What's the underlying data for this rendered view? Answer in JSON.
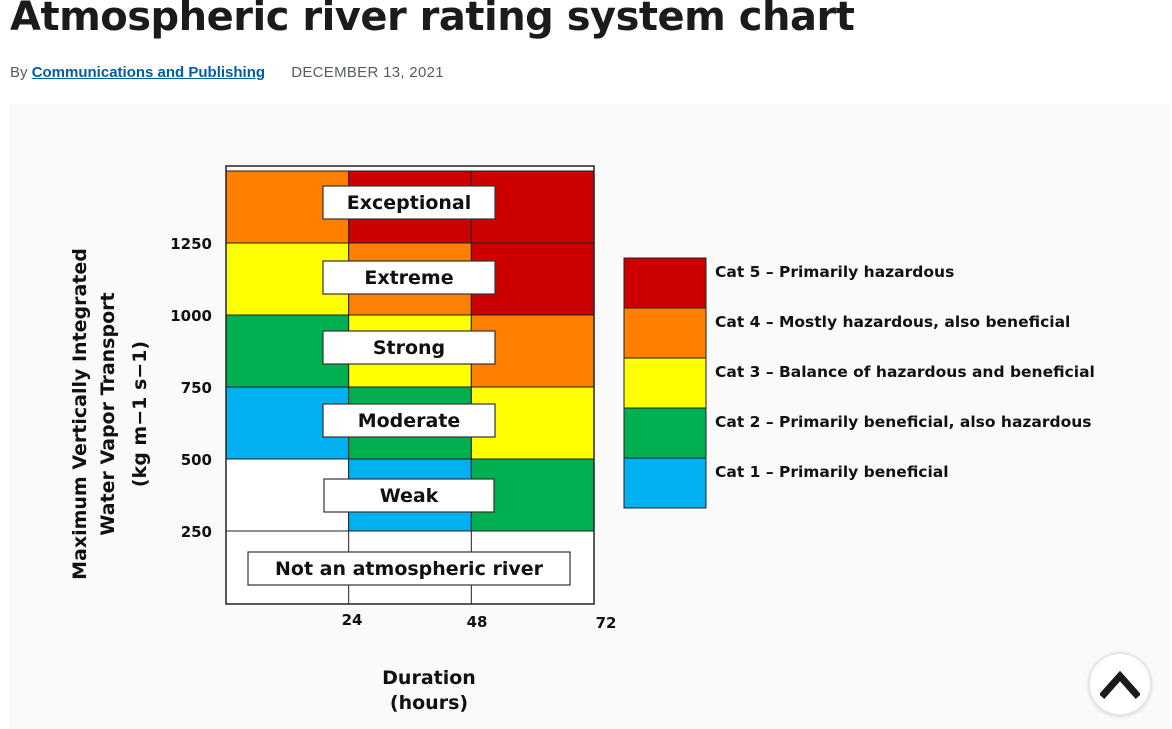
{
  "article": {
    "title": "Atmospheric river rating system chart",
    "byline_prefix": "By",
    "author": "Communications and Publishing",
    "date": "DECEMBER 13, 2021"
  },
  "chart_data": {
    "type": "heatmap",
    "ylabel_lines": [
      "Maximum Vertically Integrated",
      "Water Vapor Transport",
      "(kg m−1 s−1)"
    ],
    "xlabel_lines": [
      "Duration",
      "(hours)"
    ],
    "x_ticks": [
      "24",
      "48",
      "72"
    ],
    "y_ticks": [
      "250",
      "500",
      "750",
      "1000",
      "1250"
    ],
    "x_bins": [
      [
        0,
        24
      ],
      [
        24,
        48
      ],
      [
        48,
        72
      ]
    ],
    "y_bins": [
      [
        250,
        500
      ],
      [
        500,
        750
      ],
      [
        750,
        1000
      ],
      [
        1000,
        1250
      ],
      [
        1250,
        1500
      ]
    ],
    "cells": [
      [
        0,
        1,
        2
      ],
      [
        1,
        2,
        3
      ],
      [
        2,
        3,
        4
      ],
      [
        3,
        4,
        5
      ],
      [
        4,
        5,
        5
      ]
    ],
    "category_colors": {
      "0": "#ffffff",
      "1": "#00b0f0",
      "2": "#00b050",
      "3": "#ffff00",
      "4": "#ff7f00",
      "5": "#cc0000"
    },
    "band_labels": [
      "Not an atmospheric river",
      "Weak",
      "Moderate",
      "Strong",
      "Extreme",
      "Exceptional"
    ],
    "legend": [
      {
        "category": 5,
        "label": "Cat 5 – Primarily hazardous",
        "color": "#cc0000"
      },
      {
        "category": 4,
        "label": "Cat 4 – Mostly hazardous, also beneficial",
        "color": "#ff7f00"
      },
      {
        "category": 3,
        "label": "Cat 3 – Balance of hazardous and beneficial",
        "color": "#ffff00"
      },
      {
        "category": 2,
        "label": "Cat 2 – Primarily beneficial, also hazardous",
        "color": "#00b050"
      },
      {
        "category": 1,
        "label": "Cat 1 – Primarily beneficial",
        "color": "#00b0f0"
      }
    ],
    "legend_placement": "right",
    "grid": true
  },
  "ui": {
    "back_to_top_icon": "chevron-up-icon"
  }
}
